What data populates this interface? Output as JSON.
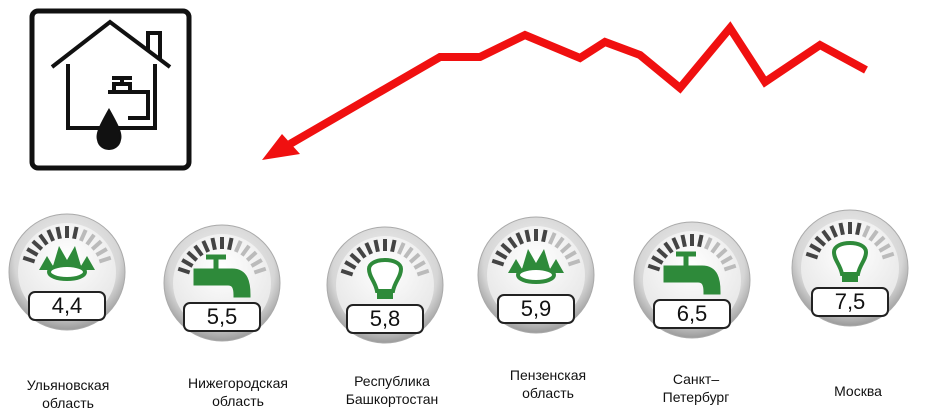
{
  "meters": [
    {
      "value": "4,4",
      "label_lines": [
        "Ульяновская",
        "область"
      ]
    },
    {
      "value": "5,5",
      "label_lines": [
        "Нижегородская",
        "область"
      ]
    },
    {
      "value": "5,8",
      "label_lines": [
        "Республика",
        "Башкортостан"
      ]
    },
    {
      "value": "5,9",
      "label_lines": [
        "Пензенская",
        "область"
      ]
    },
    {
      "value": "6,5",
      "label_lines": [
        "Санкт–",
        "Петербург"
      ]
    },
    {
      "value": "7,5",
      "label_lines": [
        "Москва"
      ]
    }
  ]
}
